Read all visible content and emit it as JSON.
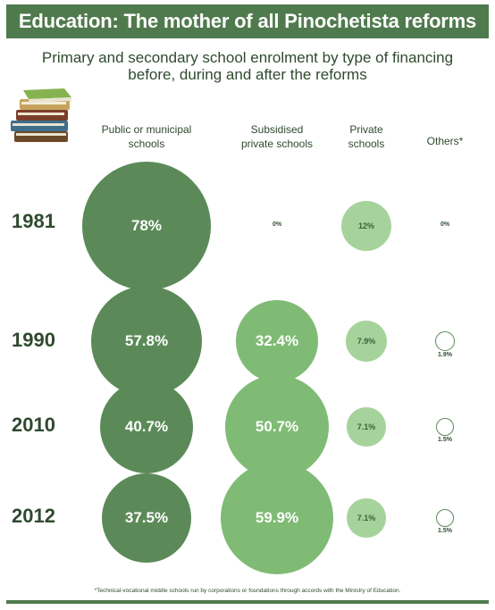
{
  "title": "Education: The mother of all Pinochetista reforms",
  "subtitle_line1": "Primary and secondary school enrolment by type of financing",
  "subtitle_line2": "before, during and after the reforms",
  "footnote": "*Technical-vocational middle schools run by corporations or foundations through accords with the Ministry of Education.",
  "colors": {
    "dark_green": "#5b8a58",
    "light_green": "#7fbb74",
    "pale_green": "#a6d39b",
    "bar": "#4f7a4d"
  },
  "icon": "stack-of-books-icon",
  "chart_data": {
    "type": "bubble",
    "title": "Education: The mother of all Pinochetista reforms",
    "categories": [
      "Public or municipal schools",
      "Subsidised private schools",
      "Private schools",
      "Others*"
    ],
    "column_headers": [
      [
        "Public or municipal",
        "schools"
      ],
      [
        "Subsidised",
        "private schools"
      ],
      [
        "Private",
        "schools"
      ],
      [
        "Others*"
      ]
    ],
    "years": [
      "1981",
      "1990",
      "2010",
      "2012"
    ],
    "series": [
      {
        "name": "1981",
        "values": [
          78,
          0,
          12,
          0
        ],
        "labels": [
          "78%",
          "0%",
          "12%",
          "0%"
        ]
      },
      {
        "name": "1990",
        "values": [
          57.8,
          32.4,
          7.9,
          1.9
        ],
        "labels": [
          "57.8%",
          "32.4%",
          "7.9%",
          "1.9%"
        ]
      },
      {
        "name": "2010",
        "values": [
          40.7,
          50.7,
          7.1,
          1.5
        ],
        "labels": [
          "40.7%",
          "50.7%",
          "7.1%",
          "1.5%"
        ]
      },
      {
        "name": "2012",
        "values": [
          37.5,
          59.9,
          7.1,
          1.5
        ],
        "labels": [
          "37.5%",
          "59.9%",
          "7.1%",
          "1.5%"
        ]
      }
    ]
  }
}
